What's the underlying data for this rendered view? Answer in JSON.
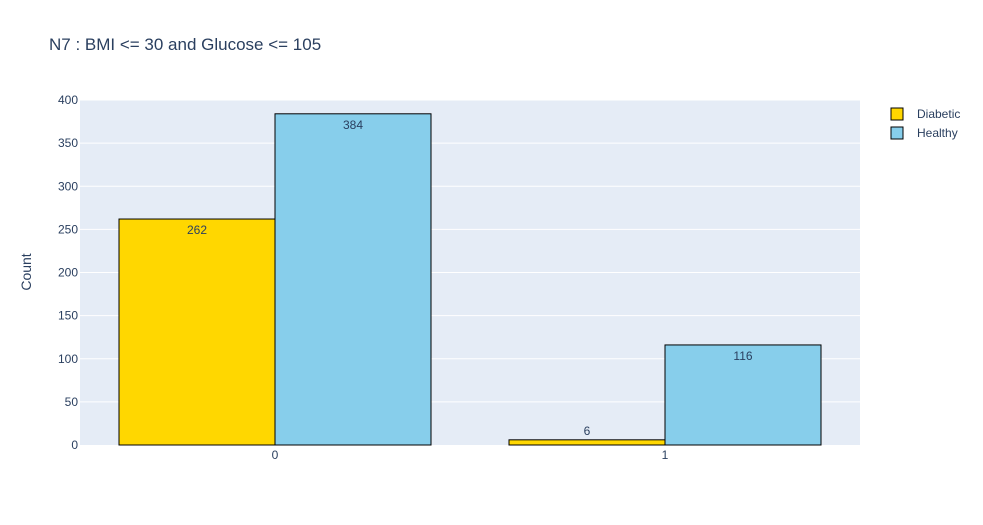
{
  "chart_data": {
    "type": "bar",
    "title": "N7 : BMI <= 30 and Glucose <= 105",
    "xlabel": "",
    "ylabel": "Count",
    "categories": [
      "0",
      "1"
    ],
    "series": [
      {
        "name": "Diabetic",
        "values": [
          262,
          6
        ],
        "color": "#FFD700"
      },
      {
        "name": "Healthy",
        "values": [
          384,
          116
        ],
        "color": "#87CEEB"
      }
    ],
    "ylim": [
      0,
      400
    ],
    "yticks": [
      0,
      50,
      100,
      150,
      200,
      250,
      300,
      350,
      400
    ],
    "grid": true,
    "plot_background": "#E5ECF6",
    "bar_outline_color": "#000000",
    "legend_position": "top-right",
    "data_labels": true
  }
}
